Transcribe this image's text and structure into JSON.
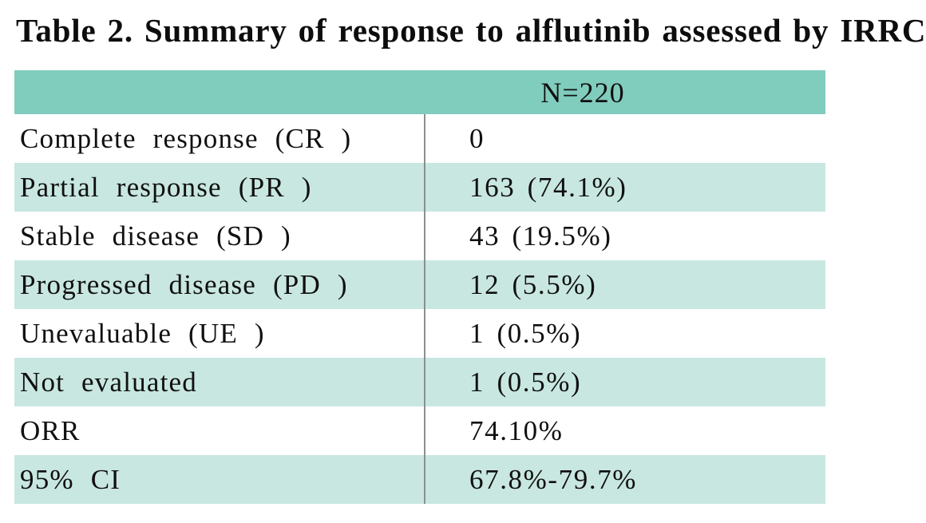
{
  "title": "Table 2. Summary of response to alflutinib assessed by IRRC",
  "table": {
    "header": {
      "n_label": "N=220"
    },
    "rows": [
      {
        "label": "Complete response (CR )",
        "value": "0"
      },
      {
        "label": "Partial response (PR )",
        "value": "163 (74.1%)"
      },
      {
        "label": "Stable disease (SD )",
        "value": "43 (19.5%)"
      },
      {
        "label": "Progressed disease (PD )",
        "value": "12 (5.5%)"
      },
      {
        "label": "Unevaluable (UE )",
        "value": "1 (0.5%)"
      },
      {
        "label": "Not evaluated",
        "value": "1 (0.5%)"
      },
      {
        "label": "ORR",
        "value": "74.10%"
      },
      {
        "label": "95% CI",
        "value": "67.8%-79.7%"
      }
    ]
  },
  "colors": {
    "header_background": "#80ccbd",
    "stripe_background": "#c8e7e0",
    "divider": "#8a908f",
    "text": "#101010"
  }
}
